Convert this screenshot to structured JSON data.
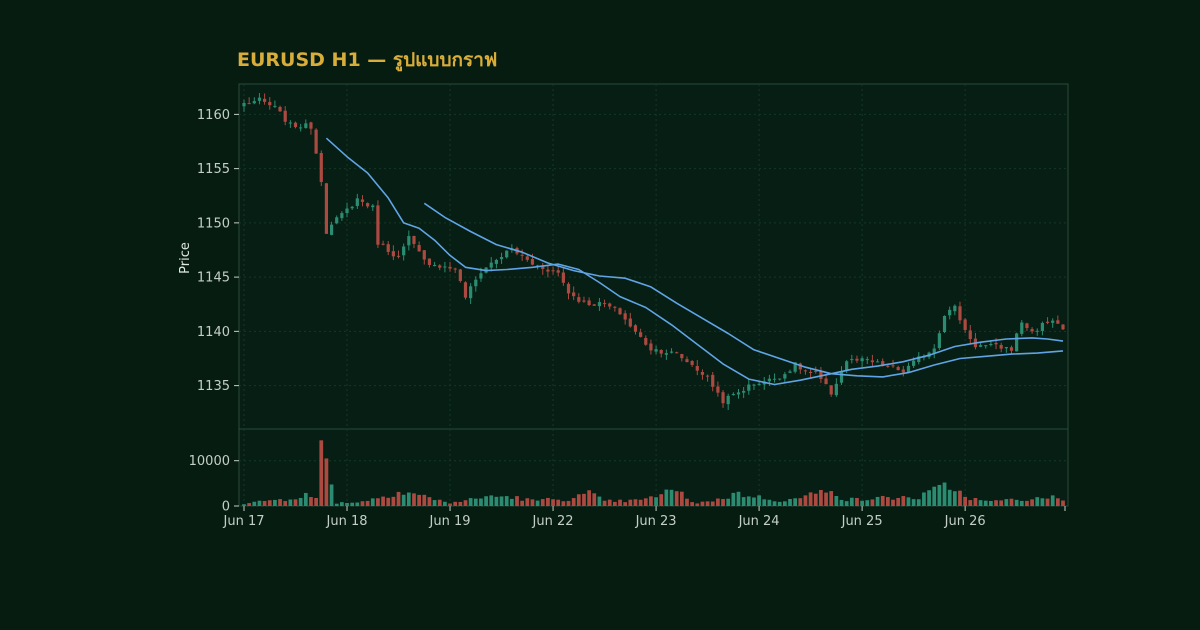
{
  "chart_data": {
    "type": "candlestick",
    "title": "EURUSD H1 — รูปแบบกราฟ",
    "ylabel": "Price",
    "x_ticks": [
      "Jun 17",
      "Jun 18",
      "Jun 19",
      "Jun 22",
      "Jun 23",
      "Jun 24",
      "Jun 25",
      "Jun 26"
    ],
    "price_panel": {
      "ylim": [
        1131.0,
        1162.8
      ],
      "y_ticks": [
        1135,
        1140,
        1145,
        1150,
        1155,
        1160
      ],
      "grid": true
    },
    "volume_panel": {
      "ylim": [
        0,
        17000
      ],
      "y_ticks": [
        0,
        10000
      ],
      "grid": true
    },
    "candle_count": 160,
    "ohlc_anchors": [
      [
        0,
        1161.0
      ],
      [
        3,
        1161.3
      ],
      [
        6,
        1160.6
      ],
      [
        9,
        1159.0
      ],
      [
        13,
        1158.9
      ],
      [
        15,
        1154.0
      ],
      [
        16,
        1149.2
      ],
      [
        18,
        1150.3
      ],
      [
        20,
        1151.2
      ],
      [
        22,
        1152.2
      ],
      [
        25,
        1151.4
      ],
      [
        26,
        1148.2
      ],
      [
        30,
        1146.8
      ],
      [
        32,
        1148.6
      ],
      [
        35,
        1146.5
      ],
      [
        39,
        1145.9
      ],
      [
        41,
        1145.8
      ],
      [
        43,
        1143.2
      ],
      [
        46,
        1145.5
      ],
      [
        48,
        1146.3
      ],
      [
        52,
        1147.6
      ],
      [
        56,
        1146.2
      ],
      [
        61,
        1145.4
      ],
      [
        63,
        1143.6
      ],
      [
        66,
        1142.6
      ],
      [
        70,
        1142.5
      ],
      [
        73,
        1141.7
      ],
      [
        76,
        1139.9
      ],
      [
        79,
        1138.4
      ],
      [
        84,
        1137.9
      ],
      [
        87,
        1136.9
      ],
      [
        90,
        1135.7
      ],
      [
        93,
        1133.6
      ],
      [
        96,
        1134.4
      ],
      [
        99,
        1135.2
      ],
      [
        102,
        1135.5
      ],
      [
        105,
        1136.1
      ],
      [
        107,
        1136.9
      ],
      [
        109,
        1136.3
      ],
      [
        111,
        1136.1
      ],
      [
        114,
        1134.3
      ],
      [
        117,
        1137.3
      ],
      [
        121,
        1137.3
      ],
      [
        126,
        1136.6
      ],
      [
        128,
        1136.3
      ],
      [
        131,
        1137.5
      ],
      [
        134,
        1138.5
      ],
      [
        136,
        1141.6
      ],
      [
        138,
        1142.2
      ],
      [
        140,
        1140.1
      ],
      [
        142,
        1138.7
      ],
      [
        146,
        1138.6
      ],
      [
        149,
        1138.4
      ],
      [
        151,
        1140.9
      ],
      [
        153,
        1139.9
      ],
      [
        155,
        1140.6
      ],
      [
        157,
        1141.1
      ],
      [
        159,
        1140.2
      ]
    ],
    "sma_20": [
      [
        16,
        1157.8
      ],
      [
        20,
        1156.1
      ],
      [
        24,
        1154.6
      ],
      [
        28,
        1152.3
      ],
      [
        31,
        1150.0
      ],
      [
        34,
        1149.5
      ],
      [
        37,
        1148.4
      ],
      [
        40,
        1147.0
      ],
      [
        43,
        1145.9
      ],
      [
        47,
        1145.6
      ],
      [
        51,
        1145.7
      ],
      [
        56,
        1145.9
      ],
      [
        61,
        1146.2
      ],
      [
        65,
        1145.7
      ],
      [
        69,
        1144.5
      ],
      [
        73,
        1143.2
      ],
      [
        78,
        1142.2
      ],
      [
        83,
        1140.6
      ],
      [
        88,
        1138.8
      ],
      [
        93,
        1137.0
      ],
      [
        98,
        1135.6
      ],
      [
        103,
        1135.1
      ],
      [
        108,
        1135.5
      ],
      [
        113,
        1136.0
      ],
      [
        118,
        1136.5
      ],
      [
        123,
        1136.8
      ],
      [
        128,
        1137.2
      ],
      [
        133,
        1137.8
      ],
      [
        138,
        1138.6
      ],
      [
        143,
        1139.0
      ],
      [
        148,
        1139.3
      ],
      [
        153,
        1139.4
      ],
      [
        156,
        1139.3
      ],
      [
        159,
        1139.1
      ]
    ],
    "sma_50": [
      [
        35,
        1151.8
      ],
      [
        39,
        1150.5
      ],
      [
        44,
        1149.2
      ],
      [
        49,
        1148.0
      ],
      [
        54,
        1147.3
      ],
      [
        59,
        1146.3
      ],
      [
        64,
        1145.6
      ],
      [
        69,
        1145.1
      ],
      [
        74,
        1144.9
      ],
      [
        79,
        1144.1
      ],
      [
        84,
        1142.6
      ],
      [
        89,
        1141.2
      ],
      [
        94,
        1139.8
      ],
      [
        99,
        1138.3
      ],
      [
        104,
        1137.5
      ],
      [
        109,
        1136.7
      ],
      [
        114,
        1136.1
      ],
      [
        119,
        1135.9
      ],
      [
        124,
        1135.8
      ],
      [
        129,
        1136.2
      ],
      [
        134,
        1136.9
      ],
      [
        139,
        1137.5
      ],
      [
        144,
        1137.7
      ],
      [
        149,
        1137.9
      ],
      [
        154,
        1138.0
      ],
      [
        159,
        1138.2
      ]
    ],
    "volume_anchors": [
      [
        0,
        400
      ],
      [
        4,
        1200
      ],
      [
        8,
        1500
      ],
      [
        12,
        2500
      ],
      [
        14,
        1500
      ],
      [
        15,
        14500
      ],
      [
        16,
        10500
      ],
      [
        18,
        700
      ],
      [
        21,
        800
      ],
      [
        24,
        1200
      ],
      [
        27,
        2200
      ],
      [
        30,
        3200
      ],
      [
        34,
        2600
      ],
      [
        37,
        1400
      ],
      [
        40,
        700
      ],
      [
        44,
        1400
      ],
      [
        48,
        2200
      ],
      [
        52,
        2000
      ],
      [
        56,
        1200
      ],
      [
        60,
        1500
      ],
      [
        63,
        1500
      ],
      [
        67,
        2800
      ],
      [
        70,
        1100
      ],
      [
        74,
        1100
      ],
      [
        78,
        1400
      ],
      [
        81,
        2800
      ],
      [
        84,
        3500
      ],
      [
        86,
        1500
      ],
      [
        88,
        700
      ],
      [
        92,
        1400
      ],
      [
        96,
        2800
      ],
      [
        100,
        1900
      ],
      [
        104,
        1200
      ],
      [
        107,
        1500
      ],
      [
        109,
        2200
      ],
      [
        112,
        3000
      ],
      [
        114,
        4500
      ],
      [
        116,
        1500
      ],
      [
        120,
        1400
      ],
      [
        124,
        1800
      ],
      [
        128,
        1900
      ],
      [
        131,
        1800
      ],
      [
        134,
        3500
      ],
      [
        137,
        4500
      ],
      [
        140,
        2200
      ],
      [
        143,
        1100
      ],
      [
        147,
        1100
      ],
      [
        150,
        1600
      ],
      [
        153,
        1300
      ],
      [
        156,
        2100
      ],
      [
        159,
        1500
      ]
    ],
    "colors": {
      "background": "#071c11",
      "panel": "#061e13",
      "title": "#d9ad3a",
      "up": "#2b8c72",
      "down": "#ac4a42",
      "ma": "#61a4e6",
      "grid": "#173826",
      "axis": "#2a4a3c",
      "tick": "#c4cfc6"
    }
  }
}
